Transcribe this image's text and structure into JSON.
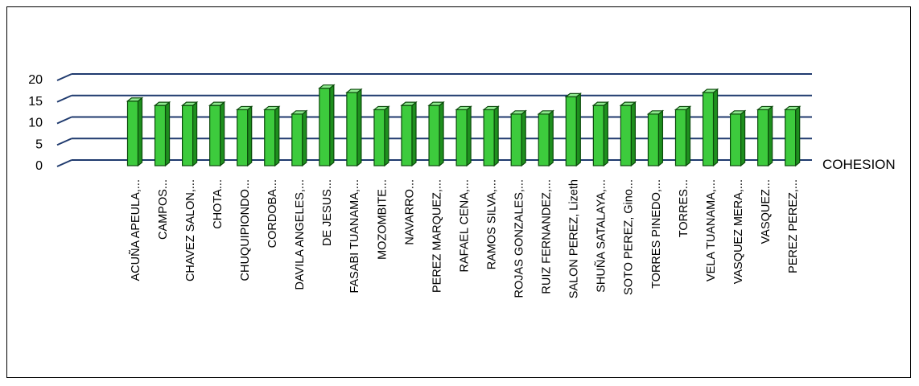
{
  "chart_data": {
    "type": "bar",
    "series": [
      {
        "name": "COHESION",
        "values": [
          15,
          14,
          14,
          14,
          13,
          13,
          12,
          18,
          17,
          13,
          14,
          14,
          13,
          13,
          12,
          12,
          16,
          14,
          14,
          12,
          13,
          17,
          12,
          13,
          13
        ]
      }
    ],
    "categories": [
      "ACUÑA APEULA,...",
      "CAMPOS...",
      "CHAVEZ SALON,...",
      "CHOTA...",
      "CHUQUIPIONDO...",
      "CORDOBA...",
      "DAVILA ANGELES,...",
      "DE JESUS...",
      "FASABI TUANAMA,...",
      "MOZOMBITE...",
      "NAVARRO...",
      "PEREZ MARQUEZ,...",
      "RAFAEL CENA,...",
      "RAMOS SILVA,...",
      "ROJAS GONZALES,...",
      "RUIZ FERNANDEZ,...",
      "SALON PEREZ, Lizeth",
      "SHUÑA SATALAYA,...",
      "SOTO PEREZ, Gino...",
      "TORRES PINEDO,...",
      "TORRES...",
      "VELA TUANAMA,...",
      "VASQUEZ MERA,...",
      "VASQUEZ...",
      "PEREZ PEREZ,..."
    ],
    "ylim": [
      0,
      20
    ],
    "yticks": [
      "0",
      "5",
      "10",
      "15",
      "20"
    ],
    "grid": true,
    "legend_position": "right",
    "colors": {
      "bar_face": "#3DCB3D",
      "bar_side": "#1E8F1E",
      "bar_top": "#8EE88E",
      "bar_outline": "#0B4A0B",
      "gridline": "#1F3A6E"
    }
  }
}
